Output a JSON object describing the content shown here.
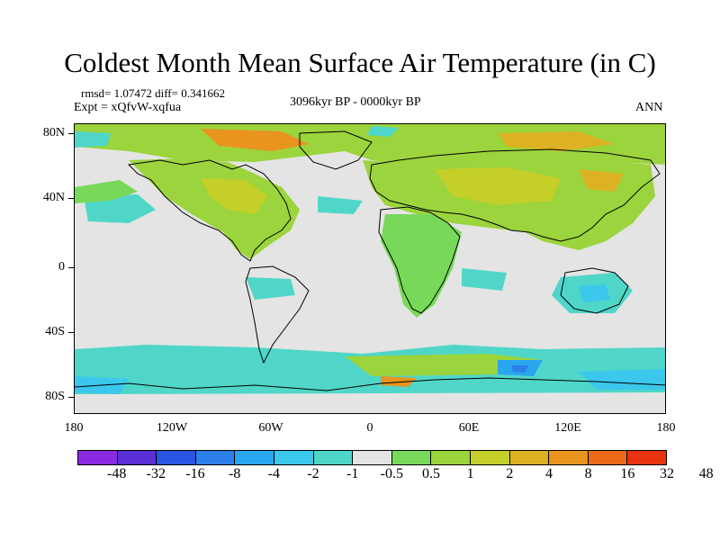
{
  "title": "Coldest Month Mean Surface Air Temperature (in C)",
  "stats": {
    "rmsd_diff": "rmsd= 1.07472 diff= 0.341662",
    "expt": "Expt = xQfvW-xqfua"
  },
  "period": "3096kyr BP - 0000kyr BP",
  "season": "ANN",
  "y_ticks": [
    "80N",
    "40N",
    "0",
    "40S",
    "80S"
  ],
  "x_ticks": [
    "180",
    "120W",
    "60W",
    "0",
    "60E",
    "120E",
    "180"
  ],
  "colorbar": {
    "colors": [
      "#8a2be2",
      "#5a2fd6",
      "#2a55e0",
      "#2c7fe8",
      "#2aa6ee",
      "#3cc7ec",
      "#4fd6c9",
      "#e4e4e4",
      "#78d85a",
      "#9bd43c",
      "#c4cf2a",
      "#dcb224",
      "#e8941e",
      "#ec6a18",
      "#e83410"
    ],
    "labels": [
      "-48",
      "-32",
      "-16",
      "-8",
      "-4",
      "-2",
      "-1",
      "-0.5",
      "0.5",
      "1",
      "2",
      "4",
      "8",
      "16",
      "32",
      "48"
    ]
  },
  "background_color": "#e4e4e4",
  "warm_colors": {
    "light_green": "#9bd43c",
    "green": "#78d85a",
    "yellow": "#c4cf2a",
    "orange": "#e8941e",
    "red": "#e83410"
  },
  "cool_colors": {
    "cyan": "#4fd6c9",
    "light_blue": "#3cc7ec",
    "blue": "#2aa6ee",
    "deep_blue": "#2c7fe8"
  }
}
